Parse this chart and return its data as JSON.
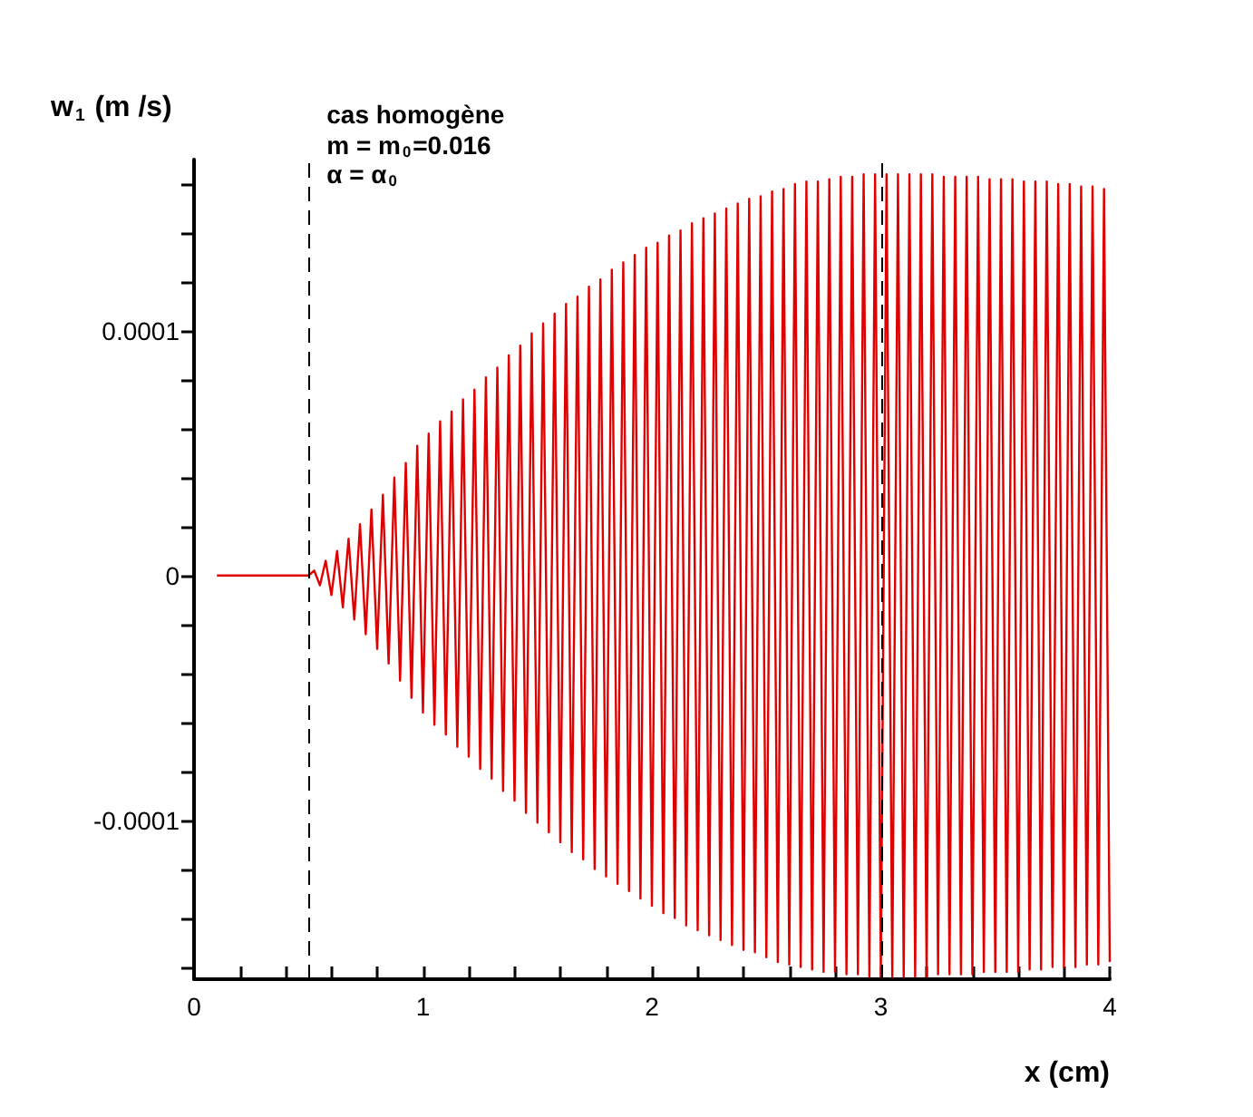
{
  "chart_data": {
    "type": "line",
    "xlabel": "x (cm)",
    "ylabel": "w$_{1}$ (m /s)",
    "annotations": [
      "cas homogène",
      "m = m$_{0}$=0.016",
      "α = α$_{0}$"
    ],
    "xlim": [
      0,
      4
    ],
    "xticks": [
      0,
      {
        "value": 0.2,
        "label": null
      },
      {
        "value": 0.4,
        "label": null
      },
      {
        "value": 0.6,
        "label": null
      },
      {
        "value": 0.8,
        "label": null
      },
      1,
      {
        "value": 1.2,
        "label": null
      },
      {
        "value": 1.4,
        "label": null
      },
      {
        "value": 1.6,
        "label": null
      },
      {
        "value": 1.8,
        "label": null
      },
      2,
      {
        "value": 2.2,
        "label": null
      },
      {
        "value": 2.4,
        "label": null
      },
      {
        "value": 2.6,
        "label": null
      },
      {
        "value": 2.8,
        "label": null
      },
      3,
      {
        "value": 3.2,
        "label": null
      },
      {
        "value": 3.4,
        "label": null
      },
      {
        "value": 3.6,
        "label": null
      },
      {
        "value": 3.8,
        "label": null
      },
      4
    ],
    "ylim": [
      -0.000165,
      0.00017
    ],
    "yticks": [
      {
        "value": -0.00016,
        "label": null
      },
      {
        "value": -0.00014,
        "label": null
      },
      {
        "value": -0.00012,
        "label": null
      },
      -0.0001,
      {
        "value": -8e-05,
        "label": null
      },
      {
        "value": -6e-05,
        "label": null
      },
      {
        "value": -4e-05,
        "label": null
      },
      {
        "value": -2e-05,
        "label": null
      },
      0,
      {
        "value": 2e-05,
        "label": null
      },
      {
        "value": 4e-05,
        "label": null
      },
      {
        "value": 6e-05,
        "label": null
      },
      {
        "value": 8e-05,
        "label": null
      },
      0.0001,
      {
        "value": 0.00012,
        "label": null
      },
      {
        "value": 0.00014,
        "label": null
      },
      {
        "value": 0.00016,
        "label": null
      }
    ],
    "grid": false,
    "marker": "none",
    "line_style": "solid",
    "ref_lines": [
      {
        "axis": "x",
        "value": 0.5,
        "color": "#000000",
        "line_style": "dashed"
      },
      {
        "axis": "x",
        "value": 3,
        "color": "#000000",
        "line_style": "dashed"
      }
    ],
    "series": [
      {
        "color": "#e00000",
        "x": [
          0.1,
          0.5,
          0.525,
          0.55,
          0.575,
          0.6,
          0.625,
          0.65,
          0.675,
          0.7,
          0.725,
          0.75,
          0.775,
          0.8,
          0.825,
          0.85,
          0.875,
          0.9,
          0.925,
          0.95,
          0.975,
          1.0,
          1.025,
          1.05,
          1.075,
          1.1,
          1.125,
          1.15,
          1.175,
          1.2,
          1.225,
          1.25,
          1.275,
          1.3,
          1.325,
          1.35,
          1.375,
          1.4,
          1.425,
          1.45,
          1.475,
          1.5,
          1.525,
          1.55,
          1.575,
          1.6,
          1.625,
          1.65,
          1.675,
          1.7,
          1.725,
          1.75,
          1.775,
          1.8,
          1.825,
          1.85,
          1.875,
          1.9,
          1.925,
          1.95,
          1.975,
          2.0,
          2.025,
          2.05,
          2.075,
          2.1,
          2.125,
          2.15,
          2.175,
          2.2,
          2.225,
          2.25,
          2.275,
          2.3,
          2.325,
          2.35,
          2.375,
          2.4,
          2.425,
          2.45,
          2.475,
          2.5,
          2.525,
          2.55,
          2.575,
          2.6,
          2.625,
          2.65,
          2.675,
          2.7,
          2.725,
          2.75,
          2.775,
          2.8,
          2.825,
          2.85,
          2.875,
          2.9,
          2.925,
          2.95,
          2.975,
          3.0,
          3.025,
          3.05,
          3.075,
          3.1,
          3.125,
          3.15,
          3.175,
          3.2,
          3.225,
          3.25,
          3.275,
          3.3,
          3.325,
          3.35,
          3.375,
          3.4,
          3.425,
          3.45,
          3.475,
          3.5,
          3.525,
          3.55,
          3.575,
          3.6,
          3.625,
          3.65,
          3.675,
          3.7,
          3.725,
          3.75,
          3.775,
          3.8,
          3.825,
          3.85,
          3.875,
          3.9,
          3.925,
          3.95,
          3.975,
          4.0
        ],
        "values": [
          0,
          0,
          2e-06,
          -4e-06,
          6e-06,
          -8e-06,
          1e-05,
          -1.3e-05,
          1.5e-05,
          -1.8e-05,
          2.1e-05,
          -2.4e-05,
          2.7e-05,
          -3e-05,
          3.3e-05,
          -3.6e-05,
          4e-05,
          -4.3e-05,
          4.6e-05,
          -5e-05,
          5.3e-05,
          -5.6e-05,
          5.8e-05,
          -6.1e-05,
          6.3e-05,
          -6.5e-05,
          6.7e-05,
          -7e-05,
          7.2e-05,
          -7.4e-05,
          7.6e-05,
          -7.9e-05,
          8.1e-05,
          -8.3e-05,
          8.5e-05,
          -8.8e-05,
          9e-05,
          -9.2e-05,
          9.4e-05,
          -9.7e-05,
          9.9e-05,
          -0.000101,
          0.000103,
          -0.000105,
          0.000107,
          -0.000109,
          0.000111,
          -0.000113,
          0.000114,
          -0.000116,
          0.000118,
          -0.00012,
          0.000121,
          -0.000123,
          0.000125,
          -0.000126,
          0.000128,
          -0.000129,
          0.000131,
          -0.000132,
          0.000134,
          -0.000135,
          0.000136,
          -0.000138,
          0.000139,
          -0.00014,
          0.000141,
          -0.000143,
          0.000144,
          -0.000145,
          0.000146,
          -0.000147,
          0.000148,
          -0.000149,
          0.00015,
          -0.000151,
          0.000152,
          -0.000153,
          0.000154,
          -0.000154,
          0.000155,
          -0.000156,
          0.000157,
          -0.000158,
          0.000158,
          -0.000159,
          0.00016,
          -0.00016,
          0.000161,
          -0.000161,
          0.000161,
          -0.000162,
          0.000162,
          -0.000162,
          0.000163,
          -0.000163,
          0.000163,
          -0.000163,
          0.000164,
          -0.000164,
          0.000164,
          -0.000164,
          0.000164,
          -0.000164,
          0.000164,
          -0.000164,
          0.000164,
          -0.000164,
          0.000164,
          -0.000164,
          0.000164,
          -0.000163,
          0.000163,
          -0.000163,
          0.000163,
          -0.000163,
          0.000163,
          -0.000163,
          0.000163,
          -0.000162,
          0.000162,
          -0.000162,
          0.000162,
          -0.000162,
          0.000162,
          -0.000162,
          0.000161,
          -0.000161,
          0.000161,
          -0.000161,
          0.000161,
          -0.00016,
          0.00016,
          -0.00016,
          0.00016,
          -0.00016,
          0.000159,
          -0.000159,
          0.000159,
          -0.000159,
          0.000158,
          -0.000158
        ]
      }
    ]
  }
}
